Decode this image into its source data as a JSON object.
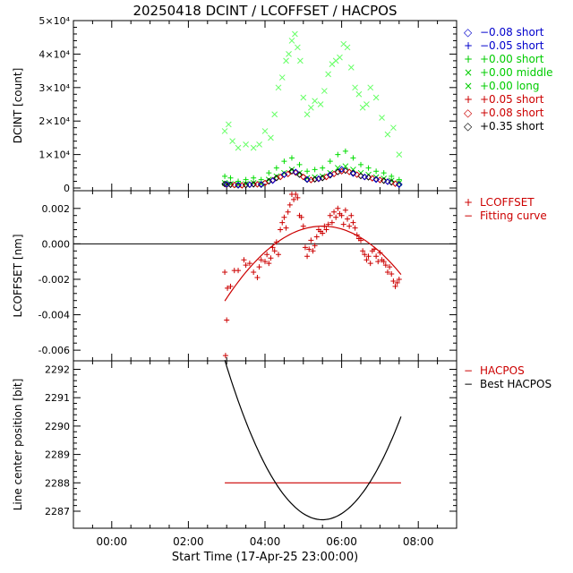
{
  "figure_title": "20250418 DCINT / LCOFFSET / HACPOS",
  "chart_data": [
    {
      "type": "scatter",
      "panel": "top",
      "ylabel": "DCINT [count]",
      "xlim": [
        -1,
        9
      ],
      "ylim": [
        -800,
        50000
      ],
      "yticks": [
        {
          "v": 0,
          "label": "0"
        },
        {
          "v": 10000,
          "label": "1×10⁴"
        },
        {
          "v": 20000,
          "label": "2×10⁴"
        },
        {
          "v": 30000,
          "label": "3×10⁴"
        },
        {
          "v": 40000,
          "label": "4×10⁴"
        },
        {
          "v": 50000,
          "label": "5×10⁴"
        }
      ],
      "legend_position": "right",
      "legend": [
        {
          "symbol": "◇",
          "label": "−0.08 short",
          "color": "#0000cc"
        },
        {
          "symbol": "+",
          "label": "−0.05 short",
          "color": "#0000cc"
        },
        {
          "symbol": "+",
          "label": "+0.00 short",
          "color": "#00cc00"
        },
        {
          "symbol": "×",
          "label": "+0.00 middle",
          "color": "#00cc00"
        },
        {
          "symbol": "×",
          "label": "+0.00 long",
          "color": "#00cc00"
        },
        {
          "symbol": "+",
          "label": "+0.05 short",
          "color": "#cc0000"
        },
        {
          "symbol": "◇",
          "label": "+0.08 short",
          "color": "#cc0000"
        },
        {
          "symbol": "◇",
          "label": "+0.35 short",
          "color": "#000000"
        }
      ],
      "series": [
        {
          "marker": "x",
          "color": "#66ff66",
          "x": [
            2.95,
            3.05,
            3.15,
            3.3,
            3.5,
            3.7,
            3.85,
            4.0,
            4.15,
            4.25,
            4.35,
            4.45,
            4.55,
            4.62,
            4.7,
            4.78,
            4.85,
            4.92,
            5.0,
            5.1,
            5.2,
            5.3,
            5.45,
            5.55,
            5.65,
            5.75,
            5.85,
            5.95,
            6.05,
            6.15,
            6.25,
            6.35,
            6.45,
            6.55,
            6.65,
            6.75,
            6.9,
            7.05,
            7.2,
            7.35,
            7.5
          ],
          "y": [
            17000,
            19000,
            14000,
            12000,
            13000,
            12000,
            13000,
            17000,
            15000,
            22000,
            30000,
            33000,
            38000,
            40000,
            44000,
            46000,
            42000,
            38000,
            27000,
            22000,
            24000,
            26000,
            25000,
            29000,
            34000,
            37000,
            38000,
            39000,
            43000,
            42000,
            36000,
            30000,
            28000,
            24000,
            25000,
            30000,
            27000,
            21000,
            16000,
            18000,
            10000
          ]
        },
        {
          "marker": "+",
          "color": "#00dd00",
          "x": [
            2.95,
            3.1,
            3.3,
            3.5,
            3.7,
            3.9,
            4.1,
            4.3,
            4.5,
            4.7,
            4.9,
            5.1,
            5.3,
            5.5,
            5.7,
            5.9,
            6.1,
            6.3,
            6.5,
            6.7,
            6.9,
            7.1,
            7.3,
            7.5
          ],
          "y": [
            3500,
            3000,
            2000,
            2500,
            3000,
            2500,
            4500,
            6000,
            8000,
            9000,
            7000,
            5000,
            5500,
            6000,
            8000,
            10000,
            11000,
            9000,
            7000,
            6000,
            5000,
            4500,
            3500,
            2500
          ]
        },
        {
          "marker": "x",
          "color": "#00dd00",
          "x": [
            2.95,
            3.1,
            3.3,
            3.5,
            3.7,
            3.9,
            4.1,
            4.3,
            4.5,
            4.7,
            4.9,
            5.1,
            5.3,
            5.5,
            5.7,
            5.9,
            6.1,
            6.3,
            6.5,
            6.7,
            6.9,
            7.1,
            7.3,
            7.5
          ],
          "y": [
            1500,
            1200,
            1000,
            1200,
            1500,
            1300,
            2500,
            3500,
            4500,
            5500,
            4500,
            3000,
            3200,
            3500,
            4500,
            6000,
            6500,
            5500,
            4500,
            4000,
            3200,
            2800,
            2200,
            1500
          ]
        },
        {
          "marker": "diamond",
          "color": "#000000",
          "x": [
            2.95,
            3.1,
            3.3,
            3.5,
            3.7,
            3.9,
            4.1,
            4.3,
            4.5,
            4.7,
            4.9,
            5.1,
            5.3,
            5.5,
            5.7,
            5.9,
            6.1,
            6.3,
            6.5,
            6.7,
            6.9,
            7.1,
            7.3,
            7.5
          ],
          "y": [
            1200,
            1000,
            800,
            900,
            1100,
            1000,
            2000,
            3000,
            4000,
            5000,
            4000,
            2500,
            2600,
            3000,
            3800,
            4800,
            5200,
            4500,
            3600,
            3200,
            2600,
            2200,
            1700,
            1100
          ]
        },
        {
          "marker": "diamond",
          "color": "#cc0000",
          "x": [
            3.0,
            3.2,
            3.4,
            3.6,
            3.8,
            4.0,
            4.2,
            4.4,
            4.6,
            4.8,
            5.0,
            5.2,
            5.4,
            5.6,
            5.8,
            6.0,
            6.2,
            6.4,
            6.6,
            6.8,
            7.0,
            7.2,
            7.4
          ],
          "y": [
            1000,
            900,
            800,
            1000,
            1100,
            1500,
            2300,
            3300,
            4200,
            4600,
            3300,
            2400,
            2700,
            3300,
            4200,
            5000,
            4800,
            4000,
            3300,
            2900,
            2400,
            1900,
            1300
          ]
        },
        {
          "marker": "diamond",
          "color": "#0000cc",
          "x": [
            3.0,
            3.3,
            3.6,
            3.9,
            4.2,
            4.5,
            4.8,
            5.1,
            5.4,
            5.7,
            6.0,
            6.3,
            6.6,
            6.9,
            7.2,
            7.5
          ],
          "y": [
            1100,
            900,
            1000,
            1100,
            2200,
            4000,
            4800,
            2600,
            2800,
            4000,
            5600,
            4300,
            3300,
            2500,
            1900,
            1000
          ]
        }
      ]
    },
    {
      "type": "scatter",
      "panel": "middle",
      "ylabel": "LCOFFSET [nm]",
      "xlim": [
        -1,
        9
      ],
      "ylim": [
        -0.0066,
        0.003
      ],
      "yticks": [
        {
          "v": -0.006,
          "label": "-0.006"
        },
        {
          "v": -0.004,
          "label": "-0.004"
        },
        {
          "v": -0.002,
          "label": "-0.002"
        },
        {
          "v": 0.0,
          "label": "0.000"
        },
        {
          "v": 0.002,
          "label": "0.002"
        }
      ],
      "zero_line": true,
      "legend": [
        {
          "symbol": "+",
          "label": "LCOFFSET",
          "color": "#cc0000"
        },
        {
          "symbol": "−",
          "label": "Fitting curve",
          "color": "#cc0000"
        }
      ],
      "fit": {
        "vertex_x": 5.5,
        "vertex_y": 0.001,
        "a": -0.00065,
        "x_range": [
          2.95,
          7.55
        ]
      },
      "points": {
        "x": [
          2.95,
          2.97,
          3.0,
          3.02,
          3.1,
          3.2,
          3.3,
          3.45,
          3.5,
          3.6,
          3.7,
          3.8,
          3.85,
          3.9,
          4.0,
          4.05,
          4.1,
          4.15,
          4.2,
          4.25,
          4.3,
          4.35,
          4.4,
          4.45,
          4.5,
          4.55,
          4.6,
          4.65,
          4.7,
          4.75,
          4.8,
          4.85,
          4.9,
          4.95,
          5.0,
          5.05,
          5.1,
          5.15,
          5.2,
          5.25,
          5.3,
          5.35,
          5.4,
          5.45,
          5.5,
          5.55,
          5.6,
          5.65,
          5.7,
          5.75,
          5.8,
          5.85,
          5.9,
          5.95,
          6.0,
          6.05,
          6.1,
          6.15,
          6.2,
          6.25,
          6.3,
          6.35,
          6.4,
          6.45,
          6.5,
          6.55,
          6.6,
          6.65,
          6.7,
          6.75,
          6.8,
          6.85,
          6.9,
          6.95,
          7.0,
          7.05,
          7.1,
          7.15,
          7.2,
          7.25,
          7.3,
          7.35,
          7.4,
          7.45,
          7.5
        ],
        "y": [
          -0.0016,
          -0.0063,
          -0.0043,
          -0.0025,
          -0.0024,
          -0.0015,
          -0.0015,
          -0.0009,
          -0.0012,
          -0.0011,
          -0.0016,
          -0.0019,
          -0.0013,
          -0.0009,
          -0.001,
          -0.0006,
          -0.0011,
          -0.0008,
          -0.0002,
          -0.0004,
          0.0001,
          -0.0006,
          0.0008,
          0.0012,
          0.0015,
          0.0009,
          0.0018,
          0.0022,
          0.0028,
          0.0025,
          0.0028,
          0.0026,
          0.0016,
          0.0015,
          0.001,
          -0.0002,
          -0.0007,
          -0.0003,
          0.0002,
          -0.0004,
          -0.0001,
          0.0004,
          0.0008,
          0.0007,
          0.0006,
          0.001,
          0.0008,
          0.0011,
          0.0016,
          0.0012,
          0.0018,
          0.0015,
          0.002,
          0.0017,
          0.0016,
          0.0011,
          0.0019,
          0.0014,
          0.001,
          0.0016,
          0.0012,
          0.0009,
          0.0005,
          0.0003,
          0.0002,
          -0.0004,
          -0.0006,
          -0.0009,
          -0.0007,
          -0.0011,
          -0.0004,
          -0.0003,
          -0.0007,
          -0.001,
          -0.0005,
          -0.0009,
          -0.001,
          -0.0012,
          -0.0016,
          -0.0013,
          -0.0017,
          -0.0021,
          -0.0024,
          -0.0022,
          -0.002
        ]
      }
    },
    {
      "type": "line",
      "panel": "bottom",
      "ylabel": "Line center position [bit]",
      "xlabel": "Start Time (17-Apr-25 23:00:00)",
      "xlim": [
        -1,
        9
      ],
      "ylim": [
        2286.4,
        2292.3
      ],
      "xticks": [
        {
          "v": 0,
          "label": "00:00"
        },
        {
          "v": 2,
          "label": "02:00"
        },
        {
          "v": 4,
          "label": "04:00"
        },
        {
          "v": 6,
          "label": "06:00"
        },
        {
          "v": 8,
          "label": "08:00"
        }
      ],
      "yticks": [
        {
          "v": 2287,
          "label": "2287"
        },
        {
          "v": 2288,
          "label": "2288"
        },
        {
          "v": 2289,
          "label": "2289"
        },
        {
          "v": 2290,
          "label": "2290"
        },
        {
          "v": 2291,
          "label": "2291"
        },
        {
          "v": 2292,
          "label": "2292"
        }
      ],
      "legend": [
        {
          "symbol": "−",
          "label": "HACPOS",
          "color": "#cc0000"
        },
        {
          "symbol": "−",
          "label": "Best HACPOS",
          "color": "#000000"
        }
      ],
      "hacpos": {
        "value": 2288,
        "x_range": [
          2.95,
          7.55
        ],
        "color": "#cc0000"
      },
      "best_hacpos": {
        "vertex_x": 5.5,
        "vertex_y": 2286.7,
        "a": 0.865,
        "x_range": [
          2.95,
          7.55
        ],
        "color": "#000000"
      }
    }
  ]
}
